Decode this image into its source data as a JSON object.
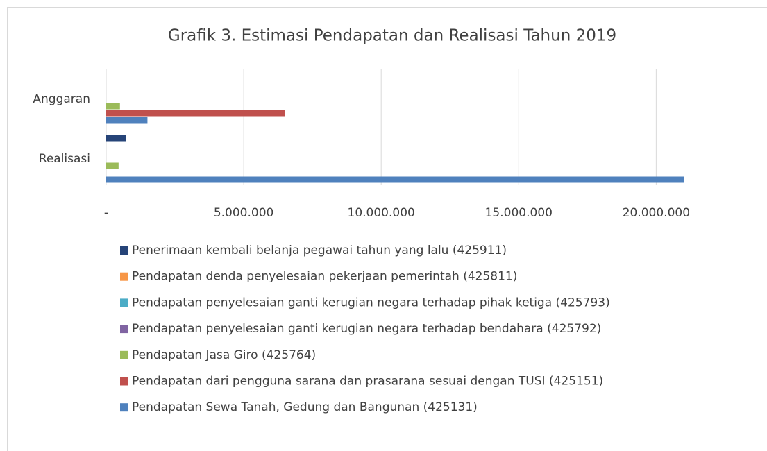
{
  "chart_data": {
    "type": "bar",
    "orientation": "horizontal",
    "title": "Grafik 3. Estimasi Pendapatan dan Realisasi Tahun 2019",
    "categories": [
      "Anggaran",
      "Realisasi"
    ],
    "series": [
      {
        "name": "Penerimaan kembali belanja pegawai tahun yang lalu (425911)",
        "color": "#264478",
        "values": [
          0,
          730000
        ]
      },
      {
        "name": "Pendapatan denda penyelesaian pekerjaan pemerintah (425811)",
        "color": "#F79646",
        "values": [
          0,
          0
        ]
      },
      {
        "name": "Pendapatan penyelesaian ganti kerugian negara terhadap pihak ketiga (425793)",
        "color": "#4BACC6",
        "values": [
          0,
          0
        ]
      },
      {
        "name": "Pendapatan penyelesaian ganti kerugian negara terhadap bendahara (425792)",
        "color": "#8064A2",
        "values": [
          0,
          0
        ]
      },
      {
        "name": "Pendapatan Jasa Giro (425764)",
        "color": "#9BBB59",
        "values": [
          500000,
          450000
        ]
      },
      {
        "name": "Pendapatan dari pengguna sarana dan prasarana sesuai dengan TUSI (425151)",
        "color": "#C0504D",
        "values": [
          6500000,
          0
        ]
      },
      {
        "name": "Pendapatan Sewa Tanah, Gedung dan Bangunan (425131)",
        "color": "#4F81BD",
        "values": [
          1500000,
          21000000
        ]
      }
    ],
    "xlim": [
      0,
      21000000
    ],
    "xticks": [
      {
        "value": 0,
        "label": "-"
      },
      {
        "value": 5000000,
        "label": "5.000.000"
      },
      {
        "value": 10000000,
        "label": "10.000.000"
      },
      {
        "value": 15000000,
        "label": "15.000.000"
      },
      {
        "value": 20000000,
        "label": "20.000.000"
      }
    ],
    "grid": true,
    "legend": "bottom"
  }
}
